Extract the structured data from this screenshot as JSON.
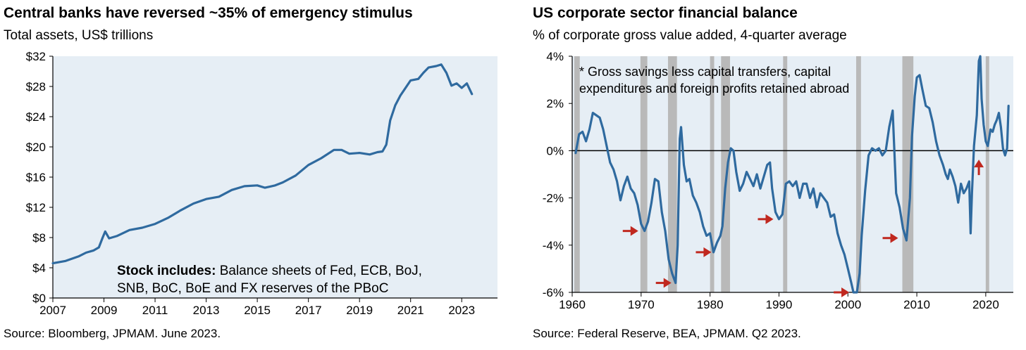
{
  "left": {
    "title": "Central banks have reversed ~35% of emergency stimulus",
    "subtitle": "Total assets, US$ trillions",
    "source": "Source: Bloomberg, JPMAM. June 2023.",
    "note_bold": "Stock includes:",
    "note_line1": " Balance sheets of Fed, ECB, BoJ,",
    "note_line2": "SNB, BoC, BoE and FX reserves of the PBoC"
  },
  "right": {
    "title": "US corporate sector financial balance",
    "subtitle": "% of corporate gross value added, 4-quarter average",
    "source": "Source: Federal Reserve, BEA, JPMAM. Q2 2023.",
    "note_line1": "* Gross savings less capital transfers, capital",
    "note_line2": "expenditures and foreign profits retained abroad"
  },
  "colors": {
    "line": "#2f6a9f",
    "plot_bg": "#e6eef5",
    "recession": "#b9b9b9",
    "arrow": "#c0281f"
  },
  "chart_data": [
    {
      "type": "line",
      "title": "Central banks have reversed ~35% of emergency stimulus",
      "ylabel": "Total assets, US$ trillions",
      "xlim": [
        2007,
        2024.4
      ],
      "ylim": [
        0,
        32
      ],
      "x_ticks": [
        2007,
        2009,
        2011,
        2013,
        2015,
        2017,
        2019,
        2021,
        2023
      ],
      "x_tick_labels": [
        "2007",
        "2009",
        "2011",
        "2013",
        "2015",
        "2017",
        "2019",
        "2021",
        "2023"
      ],
      "y_ticks": [
        0,
        4,
        8,
        12,
        16,
        20,
        24,
        28,
        32
      ],
      "y_tick_labels": [
        "$0",
        "$4",
        "$8",
        "$12",
        "$16",
        "$20",
        "$24",
        "$28",
        "$32"
      ],
      "series": [
        {
          "values": [
            [
              2007.0,
              4.6
            ],
            [
              2007.5,
              4.9
            ],
            [
              2008.0,
              5.5
            ],
            [
              2008.3,
              6.0
            ],
            [
              2008.6,
              6.3
            ],
            [
              2008.8,
              6.7
            ],
            [
              2008.95,
              8.0
            ],
            [
              2009.05,
              8.8
            ],
            [
              2009.2,
              7.9
            ],
            [
              2009.5,
              8.2
            ],
            [
              2010.0,
              9.0
            ],
            [
              2010.5,
              9.3
            ],
            [
              2011.0,
              9.8
            ],
            [
              2011.5,
              10.6
            ],
            [
              2012.0,
              11.6
            ],
            [
              2012.5,
              12.5
            ],
            [
              2013.0,
              13.1
            ],
            [
              2013.5,
              13.4
            ],
            [
              2014.0,
              14.3
            ],
            [
              2014.5,
              14.8
            ],
            [
              2015.0,
              14.9
            ],
            [
              2015.3,
              14.6
            ],
            [
              2015.7,
              14.9
            ],
            [
              2016.0,
              15.3
            ],
            [
              2016.5,
              16.2
            ],
            [
              2017.0,
              17.6
            ],
            [
              2017.5,
              18.5
            ],
            [
              2018.0,
              19.6
            ],
            [
              2018.3,
              19.6
            ],
            [
              2018.6,
              19.1
            ],
            [
              2019.0,
              19.2
            ],
            [
              2019.4,
              19.0
            ],
            [
              2019.7,
              19.3
            ],
            [
              2019.9,
              19.4
            ],
            [
              2020.05,
              20.3
            ],
            [
              2020.2,
              23.5
            ],
            [
              2020.4,
              25.5
            ],
            [
              2020.6,
              26.8
            ],
            [
              2021.0,
              28.8
            ],
            [
              2021.3,
              29.0
            ],
            [
              2021.5,
              29.8
            ],
            [
              2021.7,
              30.5
            ],
            [
              2022.0,
              30.7
            ],
            [
              2022.2,
              30.9
            ],
            [
              2022.4,
              29.8
            ],
            [
              2022.6,
              28.1
            ],
            [
              2022.8,
              28.4
            ],
            [
              2023.0,
              27.8
            ],
            [
              2023.2,
              28.4
            ],
            [
              2023.4,
              27.0
            ]
          ]
        }
      ]
    },
    {
      "type": "line",
      "title": "US corporate sector financial balance",
      "ylabel": "% of corporate gross value added, 4-quarter average",
      "xlim": [
        1960,
        2024
      ],
      "ylim": [
        -6,
        4
      ],
      "x_ticks": [
        1960,
        1970,
        1980,
        1990,
        2000,
        2010,
        2020
      ],
      "x_tick_labels": [
        "1960",
        "1970",
        "1980",
        "1990",
        "2000",
        "2010",
        "2020"
      ],
      "y_ticks": [
        -6,
        -4,
        -2,
        0,
        2,
        4
      ],
      "y_tick_labels": [
        "-6%",
        "-4%",
        "-2%",
        "0%",
        "2%",
        "4%"
      ],
      "recessions": [
        [
          1960.3,
          1961.1
        ],
        [
          1969.9,
          1970.9
        ],
        [
          1973.9,
          1975.2
        ],
        [
          1980.0,
          1980.6
        ],
        [
          1981.6,
          1982.9
        ],
        [
          1990.6,
          1991.2
        ],
        [
          2001.2,
          2001.9
        ],
        [
          2007.9,
          2009.5
        ],
        [
          2020.0,
          2020.5
        ]
      ],
      "arrows": [
        [
          1970.2,
          -3.4
        ],
        [
          1975.0,
          -5.6
        ],
        [
          1980.8,
          -4.3
        ],
        [
          1989.8,
          -2.9
        ],
        [
          2000.8,
          -6.0
        ],
        [
          2007.9,
          -3.7
        ],
        [
          2019.0,
          -0.2
        ]
      ],
      "series": [
        {
          "values": [
            [
              1960.5,
              -0.1
            ],
            [
              1961.0,
              0.7
            ],
            [
              1961.5,
              0.8
            ],
            [
              1962.0,
              0.4
            ],
            [
              1962.5,
              0.9
            ],
            [
              1963.0,
              1.6
            ],
            [
              1963.5,
              1.5
            ],
            [
              1964.0,
              1.4
            ],
            [
              1964.5,
              0.9
            ],
            [
              1965.0,
              0.2
            ],
            [
              1965.5,
              -0.5
            ],
            [
              1966.0,
              -0.8
            ],
            [
              1966.5,
              -1.3
            ],
            [
              1967.0,
              -2.1
            ],
            [
              1967.5,
              -1.5
            ],
            [
              1968.0,
              -1.1
            ],
            [
              1968.5,
              -1.6
            ],
            [
              1969.0,
              -1.8
            ],
            [
              1969.5,
              -2.3
            ],
            [
              1970.0,
              -3.1
            ],
            [
              1970.5,
              -3.4
            ],
            [
              1971.0,
              -3.0
            ],
            [
              1971.5,
              -2.2
            ],
            [
              1972.0,
              -1.2
            ],
            [
              1972.5,
              -1.3
            ],
            [
              1973.0,
              -2.6
            ],
            [
              1973.5,
              -3.4
            ],
            [
              1974.0,
              -4.6
            ],
            [
              1974.5,
              -5.2
            ],
            [
              1975.0,
              -5.6
            ],
            [
              1975.3,
              -4.0
            ],
            [
              1975.6,
              0.5
            ],
            [
              1975.8,
              1.0
            ],
            [
              1976.2,
              -0.6
            ],
            [
              1976.6,
              -1.3
            ],
            [
              1977.0,
              -1.2
            ],
            [
              1977.5,
              -1.9
            ],
            [
              1978.0,
              -2.2
            ],
            [
              1978.5,
              -2.6
            ],
            [
              1979.0,
              -3.2
            ],
            [
              1979.5,
              -3.6
            ],
            [
              1980.0,
              -3.5
            ],
            [
              1980.5,
              -4.3
            ],
            [
              1981.0,
              -3.9
            ],
            [
              1981.5,
              -3.6
            ],
            [
              1981.8,
              -3.2
            ],
            [
              1982.2,
              -1.6
            ],
            [
              1982.6,
              -0.5
            ],
            [
              1983.0,
              0.1
            ],
            [
              1983.4,
              0.0
            ],
            [
              1983.8,
              -0.9
            ],
            [
              1984.3,
              -1.7
            ],
            [
              1984.8,
              -1.4
            ],
            [
              1985.3,
              -0.9
            ],
            [
              1985.8,
              -1.2
            ],
            [
              1986.3,
              -1.5
            ],
            [
              1986.8,
              -1.0
            ],
            [
              1987.3,
              -1.6
            ],
            [
              1987.8,
              -1.1
            ],
            [
              1988.3,
              -0.6
            ],
            [
              1988.7,
              -0.5
            ],
            [
              1989.0,
              -1.6
            ],
            [
              1989.5,
              -2.6
            ],
            [
              1990.0,
              -2.9
            ],
            [
              1990.5,
              -2.7
            ],
            [
              1991.0,
              -1.4
            ],
            [
              1991.5,
              -1.3
            ],
            [
              1992.0,
              -1.5
            ],
            [
              1992.5,
              -1.3
            ],
            [
              1993.0,
              -2.0
            ],
            [
              1993.5,
              -1.4
            ],
            [
              1994.0,
              -1.4
            ],
            [
              1994.5,
              -2.0
            ],
            [
              1995.0,
              -1.6
            ],
            [
              1995.5,
              -2.4
            ],
            [
              1996.0,
              -1.8
            ],
            [
              1996.5,
              -2.0
            ],
            [
              1997.0,
              -2.2
            ],
            [
              1997.5,
              -2.8
            ],
            [
              1998.0,
              -2.7
            ],
            [
              1998.5,
              -3.5
            ],
            [
              1999.0,
              -4.0
            ],
            [
              1999.5,
              -4.4
            ],
            [
              2000.0,
              -5.0
            ],
            [
              2000.5,
              -5.6
            ],
            [
              2000.8,
              -6.0
            ],
            [
              2001.3,
              -6.0
            ],
            [
              2001.7,
              -5.2
            ],
            [
              2002.0,
              -3.6
            ],
            [
              2002.5,
              -1.7
            ],
            [
              2003.0,
              -0.2
            ],
            [
              2003.5,
              0.1
            ],
            [
              2004.0,
              0.0
            ],
            [
              2004.5,
              0.1
            ],
            [
              2005.0,
              -0.2
            ],
            [
              2005.5,
              0.0
            ],
            [
              2006.0,
              1.0
            ],
            [
              2006.5,
              1.7
            ],
            [
              2007.0,
              -1.8
            ],
            [
              2007.5,
              -2.4
            ],
            [
              2008.0,
              -3.3
            ],
            [
              2008.5,
              -3.8
            ],
            [
              2009.0,
              -2.0
            ],
            [
              2009.3,
              0.6
            ],
            [
              2009.7,
              2.3
            ],
            [
              2010.0,
              3.1
            ],
            [
              2010.4,
              3.2
            ],
            [
              2010.8,
              2.6
            ],
            [
              2011.3,
              1.9
            ],
            [
              2011.8,
              1.8
            ],
            [
              2012.3,
              1.2
            ],
            [
              2012.8,
              0.4
            ],
            [
              2013.3,
              -0.2
            ],
            [
              2013.8,
              -0.6
            ],
            [
              2014.2,
              -1.0
            ],
            [
              2014.5,
              -1.2
            ],
            [
              2014.8,
              -0.8
            ],
            [
              2015.2,
              -1.1
            ],
            [
              2015.6,
              -1.5
            ],
            [
              2016.0,
              -2.2
            ],
            [
              2016.4,
              -1.4
            ],
            [
              2016.8,
              -1.8
            ],
            [
              2017.2,
              -1.6
            ],
            [
              2017.6,
              -1.3
            ],
            [
              2017.8,
              -3.5
            ],
            [
              2018.0,
              -1.8
            ],
            [
              2018.3,
              0.2
            ],
            [
              2018.7,
              1.5
            ],
            [
              2019.0,
              3.8
            ],
            [
              2019.2,
              4.2
            ],
            [
              2019.4,
              2.2
            ],
            [
              2019.7,
              1.1
            ],
            [
              2020.0,
              0.4
            ],
            [
              2020.3,
              0.2
            ],
            [
              2020.7,
              0.9
            ],
            [
              2021.0,
              0.8
            ],
            [
              2021.3,
              1.1
            ],
            [
              2021.6,
              1.3
            ],
            [
              2021.9,
              1.6
            ],
            [
              2022.2,
              1.0
            ],
            [
              2022.5,
              0.1
            ],
            [
              2022.8,
              -0.2
            ],
            [
              2023.1,
              0.1
            ],
            [
              2023.3,
              1.9
            ]
          ]
        }
      ]
    }
  ]
}
